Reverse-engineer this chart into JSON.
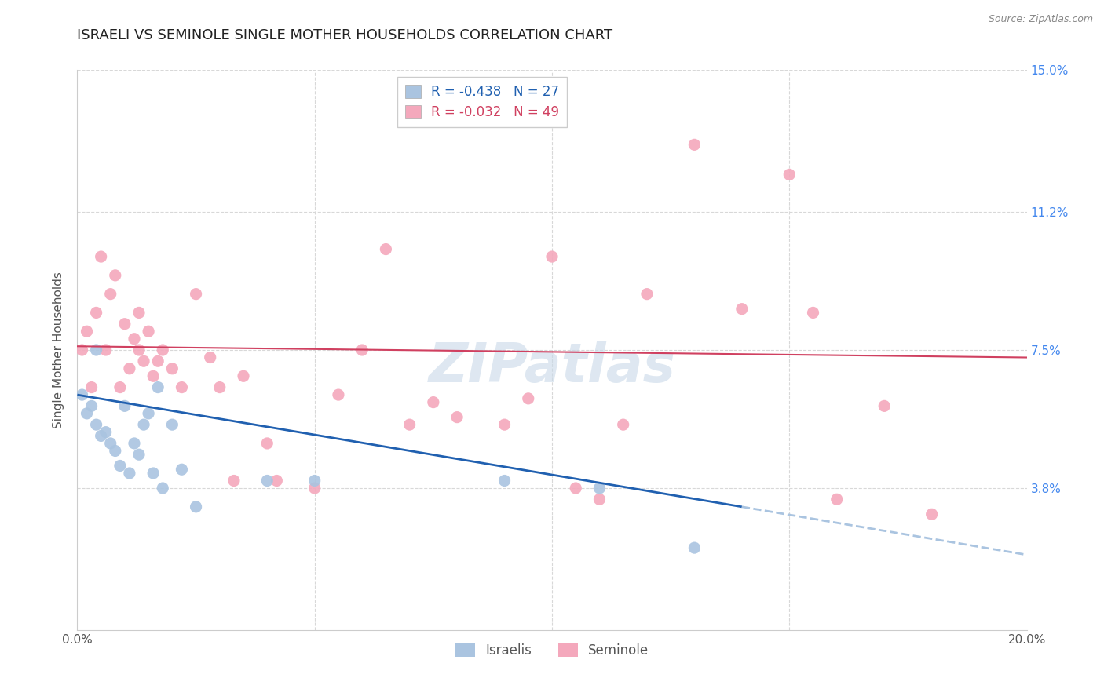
{
  "title": "ISRAELI VS SEMINOLE SINGLE MOTHER HOUSEHOLDS CORRELATION CHART",
  "source": "Source: ZipAtlas.com",
  "ylabel": "Single Mother Households",
  "xlabel": "",
  "watermark": "ZIPatlas",
  "xlim": [
    0.0,
    0.2
  ],
  "ylim": [
    0.0,
    0.15
  ],
  "yticks": [
    0.0,
    0.038,
    0.075,
    0.112,
    0.15
  ],
  "ytick_labels": [
    "",
    "3.8%",
    "7.5%",
    "11.2%",
    "15.0%"
  ],
  "xticks": [
    0.0,
    0.05,
    0.1,
    0.15,
    0.2
  ],
  "xtick_labels": [
    "0.0%",
    "",
    "",
    "",
    "20.0%"
  ],
  "legend_r1": "R = -0.438",
  "legend_n1": "N = 27",
  "legend_r2": "R = -0.032",
  "legend_n2": "N = 49",
  "blue_color": "#aac4e0",
  "pink_color": "#f4a8bc",
  "line_blue": "#2060b0",
  "line_pink": "#d04060",
  "israelis_x": [
    0.001,
    0.002,
    0.003,
    0.004,
    0.004,
    0.005,
    0.006,
    0.007,
    0.008,
    0.009,
    0.01,
    0.011,
    0.012,
    0.013,
    0.014,
    0.015,
    0.016,
    0.017,
    0.018,
    0.02,
    0.022,
    0.025,
    0.04,
    0.05,
    0.09,
    0.11,
    0.13
  ],
  "israelis_y": [
    0.063,
    0.058,
    0.06,
    0.055,
    0.075,
    0.052,
    0.053,
    0.05,
    0.048,
    0.044,
    0.06,
    0.042,
    0.05,
    0.047,
    0.055,
    0.058,
    0.042,
    0.065,
    0.038,
    0.055,
    0.043,
    0.033,
    0.04,
    0.04,
    0.04,
    0.038,
    0.022
  ],
  "seminole_x": [
    0.001,
    0.002,
    0.003,
    0.004,
    0.005,
    0.006,
    0.007,
    0.008,
    0.009,
    0.01,
    0.011,
    0.012,
    0.013,
    0.013,
    0.014,
    0.015,
    0.016,
    0.017,
    0.018,
    0.02,
    0.022,
    0.025,
    0.028,
    0.03,
    0.033,
    0.035,
    0.04,
    0.042,
    0.05,
    0.055,
    0.06,
    0.065,
    0.07,
    0.075,
    0.08,
    0.09,
    0.095,
    0.1,
    0.105,
    0.11,
    0.115,
    0.12,
    0.13,
    0.14,
    0.15,
    0.155,
    0.16,
    0.17,
    0.18
  ],
  "seminole_y": [
    0.075,
    0.08,
    0.065,
    0.085,
    0.1,
    0.075,
    0.09,
    0.095,
    0.065,
    0.082,
    0.07,
    0.078,
    0.075,
    0.085,
    0.072,
    0.08,
    0.068,
    0.072,
    0.075,
    0.07,
    0.065,
    0.09,
    0.073,
    0.065,
    0.04,
    0.068,
    0.05,
    0.04,
    0.038,
    0.063,
    0.075,
    0.102,
    0.055,
    0.061,
    0.057,
    0.055,
    0.062,
    0.1,
    0.038,
    0.035,
    0.055,
    0.09,
    0.13,
    0.086,
    0.122,
    0.085,
    0.035,
    0.06,
    0.031
  ],
  "background_color": "#ffffff",
  "grid_color": "#d8d8d8",
  "title_color": "#222222",
  "axis_label_color": "#555555",
  "right_tick_color": "#4488ee",
  "marker_size": 120,
  "trend_line_isr_x0": 0.0,
  "trend_line_isr_y0": 0.063,
  "trend_line_isr_x1": 0.14,
  "trend_line_isr_y1": 0.033,
  "trend_line_sem_x0": 0.0,
  "trend_line_sem_y0": 0.076,
  "trend_line_sem_x1": 0.2,
  "trend_line_sem_y1": 0.073
}
